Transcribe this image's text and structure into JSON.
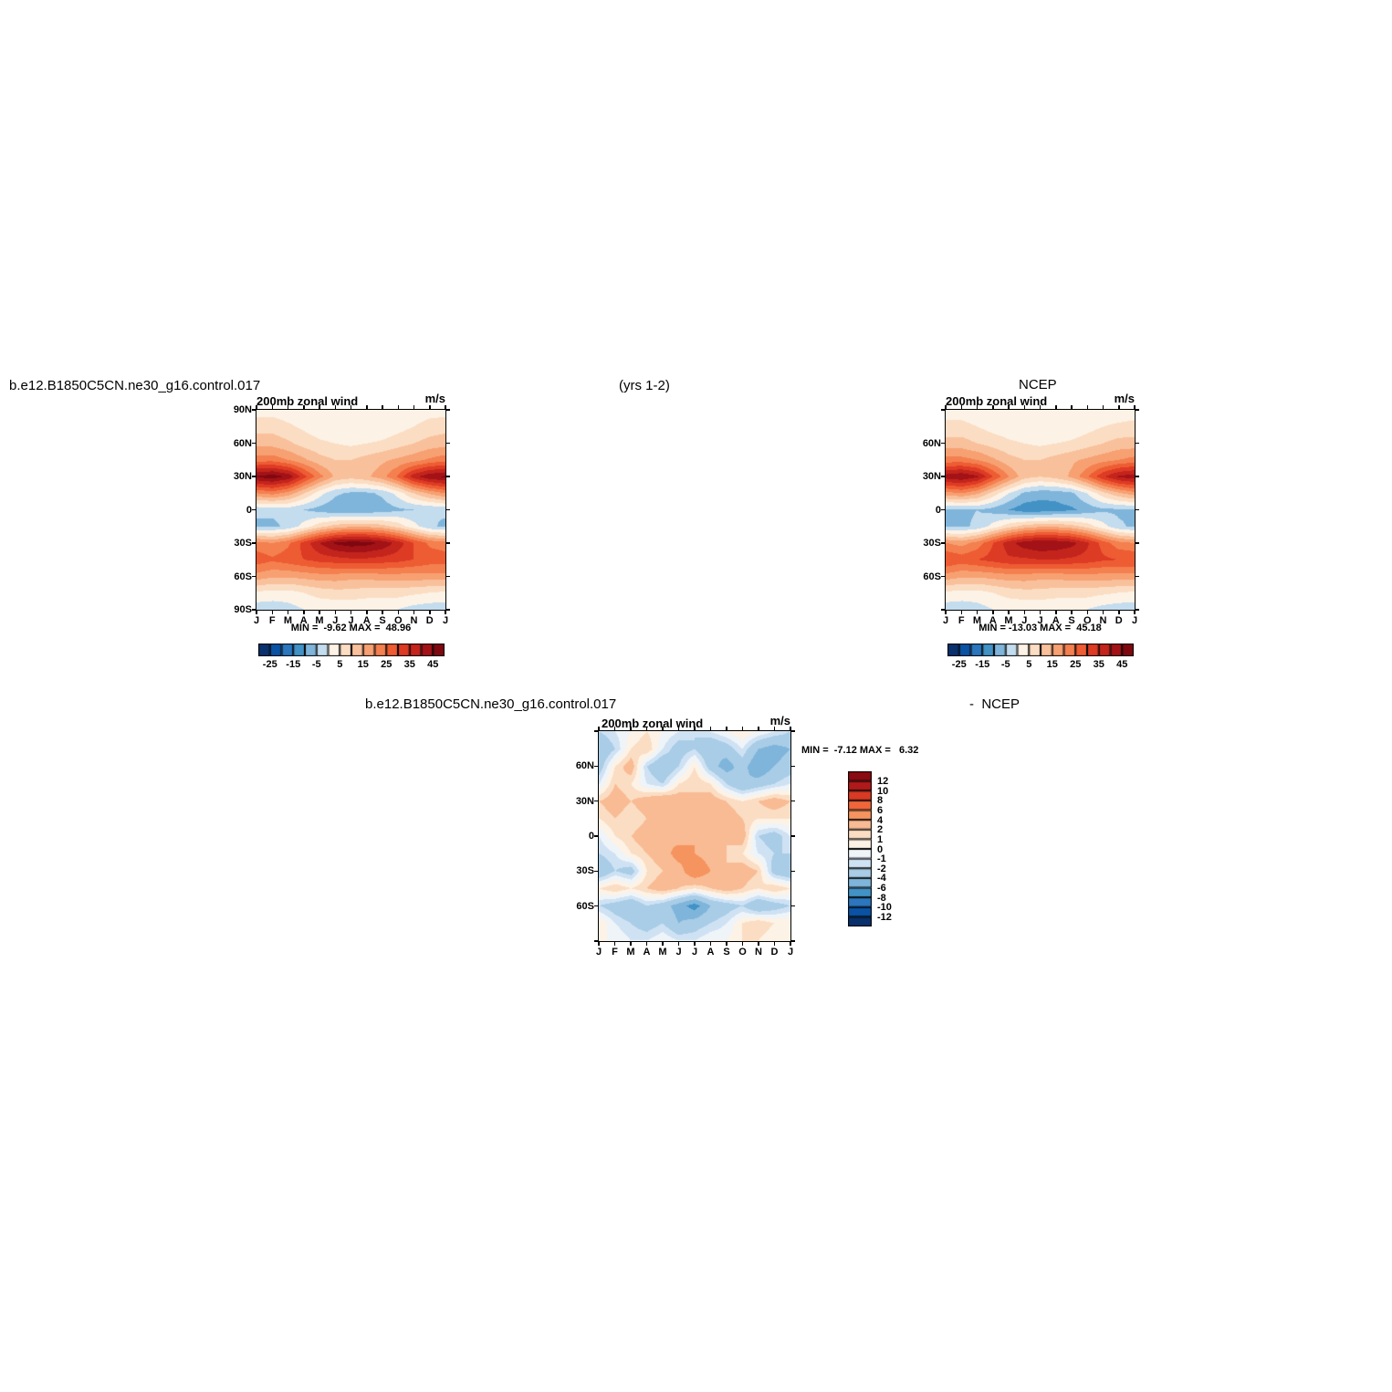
{
  "header": {
    "case_title": "b.e12.B1850C5CN.ne30_g16.control.017",
    "years_label": "(yrs 1-2)",
    "obs_title": "NCEP",
    "diff_case_title": "b.e12.B1850C5CN.ne30_g16.control.017",
    "diff_obs_label": "-  NCEP"
  },
  "palette": {
    "main_colors": [
      "#08316d",
      "#0a52a3",
      "#2b76bd",
      "#4292c6",
      "#7fb5da",
      "#c3dcee",
      "#fdf2e6",
      "#fbddc3",
      "#f9c09c",
      "#f7a072",
      "#f47f4f",
      "#ee5c33",
      "#dd3b24",
      "#c3241c",
      "#a31217",
      "#7f0810"
    ],
    "diff_colors": [
      "#08306b",
      "#0a52a3",
      "#2b76bd",
      "#4292c6",
      "#7fb5da",
      "#a9cde7",
      "#cfe2f3",
      "#eff4f9",
      "#fdf2e6",
      "#fbddc3",
      "#f9bb93",
      "#f6945f",
      "#f0663a",
      "#d93a24",
      "#b01a1a",
      "#8a0b12"
    ]
  },
  "chart_data": [
    {
      "id": "case",
      "type": "heatmap",
      "title": "200mb zonal wind",
      "units": "m/s",
      "x_ticks": [
        "J",
        "F",
        "M",
        "A",
        "M",
        "J",
        "J",
        "A",
        "S",
        "O",
        "N",
        "D",
        "J"
      ],
      "y_ticks": [
        "90N",
        "60N",
        "30N",
        "0",
        "30S",
        "60S",
        "90S"
      ],
      "y_tick_lats": [
        90,
        60,
        30,
        0,
        -30,
        -60,
        -90
      ],
      "lats": [
        90,
        75,
        60,
        45,
        30,
        15,
        0,
        -15,
        -30,
        -45,
        -60,
        -75,
        -90
      ],
      "levels": [
        -25,
        -20,
        -15,
        -10,
        -5,
        0,
        5,
        10,
        15,
        20,
        25,
        30,
        35,
        40,
        45
      ],
      "colorbar_ticks": [
        "-25",
        "-15",
        "-5",
        "5",
        "15",
        "25",
        "35",
        "45"
      ],
      "minmax_text": "MIN =  -9.62 MAX =  48.96",
      "min": -9.62,
      "max": 48.96,
      "values": [
        [
          3,
          3,
          2,
          1,
          0,
          0,
          0,
          0,
          0,
          1,
          2,
          3,
          3
        ],
        [
          8,
          8,
          6,
          4,
          2,
          1,
          0,
          0,
          1,
          3,
          5,
          7,
          8
        ],
        [
          13,
          13,
          11,
          8,
          6,
          5,
          4,
          5,
          6,
          8,
          10,
          12,
          13
        ],
        [
          23,
          23,
          20,
          16,
          12,
          10,
          10,
          12,
          14,
          16,
          18,
          21,
          23
        ],
        [
          46,
          48,
          44,
          32,
          22,
          14,
          12,
          14,
          18,
          26,
          38,
          44,
          46
        ],
        [
          20,
          22,
          18,
          10,
          2,
          -4,
          -6,
          -6,
          -4,
          2,
          10,
          16,
          20
        ],
        [
          -4,
          -4,
          -3,
          -5,
          -7,
          -9,
          -9,
          -9,
          -8,
          -6,
          -5,
          -5,
          -4
        ],
        [
          -6,
          -6,
          -4,
          2,
          8,
          12,
          14,
          14,
          12,
          8,
          2,
          -4,
          -6
        ],
        [
          22,
          20,
          24,
          32,
          40,
          46,
          48,
          47,
          44,
          38,
          30,
          24,
          22
        ],
        [
          28,
          26,
          28,
          30,
          32,
          33,
          34,
          34,
          33,
          32,
          30,
          28,
          28
        ],
        [
          18,
          16,
          16,
          17,
          18,
          18,
          17,
          17,
          18,
          18,
          18,
          18,
          18
        ],
        [
          4,
          3,
          3,
          5,
          7,
          8,
          8,
          7,
          7,
          7,
          6,
          5,
          4
        ],
        [
          -3,
          -3,
          -2,
          0,
          1,
          1,
          1,
          1,
          1,
          0,
          -2,
          -3,
          -3
        ]
      ]
    },
    {
      "id": "ncep",
      "type": "heatmap",
      "title": "200mb zonal wind",
      "units": "m/s",
      "x_ticks": [
        "J",
        "F",
        "M",
        "A",
        "M",
        "J",
        "J",
        "A",
        "S",
        "O",
        "N",
        "D",
        "J"
      ],
      "y_ticks": [
        "60N",
        "30N",
        "0",
        "30S",
        "60S"
      ],
      "y_tick_lats": [
        60,
        30,
        0,
        -30,
        -60
      ],
      "lats": [
        90,
        75,
        60,
        45,
        30,
        15,
        0,
        -15,
        -30,
        -45,
        -60,
        -75,
        -90
      ],
      "levels": [
        -25,
        -20,
        -15,
        -10,
        -5,
        0,
        5,
        10,
        15,
        20,
        25,
        30,
        35,
        40,
        45
      ],
      "colorbar_ticks": [
        "-25",
        "-15",
        "-5",
        "5",
        "15",
        "25",
        "35",
        "45"
      ],
      "minmax_text": "MIN = -13.03 MAX =  45.18",
      "min": -13.03,
      "max": 45.18,
      "values": [
        [
          2,
          2,
          1,
          0,
          0,
          0,
          0,
          0,
          0,
          1,
          2,
          2,
          2
        ],
        [
          7,
          7,
          5,
          3,
          2,
          1,
          0,
          0,
          1,
          3,
          5,
          6,
          7
        ],
        [
          12,
          12,
          10,
          8,
          6,
          5,
          4,
          5,
          6,
          8,
          10,
          12,
          12
        ],
        [
          22,
          22,
          20,
          16,
          12,
          10,
          10,
          12,
          14,
          16,
          18,
          20,
          22
        ],
        [
          43,
          45,
          41,
          30,
          20,
          12,
          10,
          12,
          16,
          24,
          34,
          41,
          43
        ],
        [
          18,
          20,
          16,
          8,
          0,
          -6,
          -8,
          -8,
          -6,
          0,
          8,
          14,
          18
        ],
        [
          -6,
          -6,
          -5,
          -7,
          -10,
          -13,
          -13,
          -12,
          -11,
          -8,
          -6,
          -6,
          -6
        ],
        [
          -6,
          -6,
          -4,
          2,
          8,
          12,
          14,
          14,
          12,
          8,
          2,
          -4,
          -6
        ],
        [
          20,
          18,
          22,
          30,
          38,
          43,
          45,
          44,
          42,
          36,
          28,
          22,
          20
        ],
        [
          30,
          28,
          30,
          32,
          34,
          34,
          35,
          35,
          34,
          33,
          31,
          30,
          30
        ],
        [
          18,
          16,
          16,
          17,
          18,
          18,
          17,
          17,
          18,
          18,
          18,
          18,
          18
        ],
        [
          4,
          3,
          3,
          5,
          7,
          8,
          8,
          7,
          7,
          7,
          6,
          5,
          4
        ],
        [
          -3,
          -3,
          -2,
          0,
          1,
          1,
          1,
          1,
          1,
          0,
          -2,
          -3,
          -3
        ]
      ]
    },
    {
      "id": "difference",
      "type": "heatmap",
      "title": "200mb zonal wind",
      "units": "m/s",
      "x_ticks": [
        "J",
        "F",
        "M",
        "A",
        "M",
        "J",
        "J",
        "A",
        "S",
        "O",
        "N",
        "D",
        "J"
      ],
      "y_ticks": [
        "60N",
        "30N",
        "0",
        "30S",
        "60S"
      ],
      "y_tick_lats": [
        60,
        30,
        0,
        -30,
        -60
      ],
      "lats": [
        90,
        75,
        60,
        45,
        30,
        15,
        0,
        -15,
        -30,
        -45,
        -60,
        -75,
        -90
      ],
      "levels": [
        -12,
        -10,
        -8,
        -6,
        -4,
        -2,
        -1,
        0,
        1,
        2,
        4,
        6,
        8,
        10,
        12
      ],
      "colorbar_ticks": [
        "12",
        "10",
        "8",
        "6",
        "4",
        "2",
        "1",
        "0",
        "-1",
        "-2",
        "-4",
        "-6",
        "-8",
        "-10",
        "-12"
      ],
      "minmax_text": "MIN =  -7.12 MAX =   6.32",
      "min": -7.12,
      "max": 6.32,
      "values": [
        [
          -2,
          -1,
          0,
          1,
          0,
          -1,
          -2,
          -1,
          0,
          1,
          0,
          -1,
          -2
        ],
        [
          -4,
          -2,
          1,
          2,
          -1,
          -3,
          -2,
          -4,
          -3,
          -1,
          -4,
          -5,
          -4
        ],
        [
          -3,
          1,
          3,
          -2,
          -4,
          -2,
          1,
          -3,
          -5,
          -3,
          -6,
          -4,
          -3
        ],
        [
          -1,
          2,
          1,
          -1,
          -2,
          1,
          2,
          1,
          -2,
          -4,
          -3,
          -2,
          -1
        ],
        [
          2,
          3,
          2,
          3,
          4,
          3,
          2,
          3,
          2,
          1,
          2,
          3,
          2
        ],
        [
          1,
          2,
          1,
          2,
          3,
          4,
          3,
          2,
          3,
          2,
          1,
          1,
          1
        ],
        [
          -1,
          1,
          2,
          3,
          4,
          3,
          4,
          3,
          2,
          3,
          -2,
          -3,
          -1
        ],
        [
          -2,
          -1,
          1,
          2,
          3,
          5,
          4,
          3,
          2,
          1,
          -1,
          -2,
          -2
        ],
        [
          -4,
          -2,
          -3,
          1,
          2,
          3,
          6,
          4,
          2,
          3,
          2,
          -3,
          -4
        ],
        [
          1,
          2,
          1,
          2,
          3,
          2,
          1,
          2,
          3,
          2,
          1,
          2,
          1
        ],
        [
          -2,
          -3,
          -4,
          -2,
          -3,
          -5,
          -7,
          -4,
          -3,
          -2,
          -4,
          -3,
          -2
        ],
        [
          1,
          -1,
          -2,
          -3,
          -2,
          -4,
          -3,
          -2,
          -1,
          1,
          2,
          1,
          1
        ],
        [
          0,
          0,
          -1,
          -1,
          0,
          -1,
          -1,
          0,
          0,
          1,
          1,
          0,
          0
        ]
      ]
    }
  ]
}
